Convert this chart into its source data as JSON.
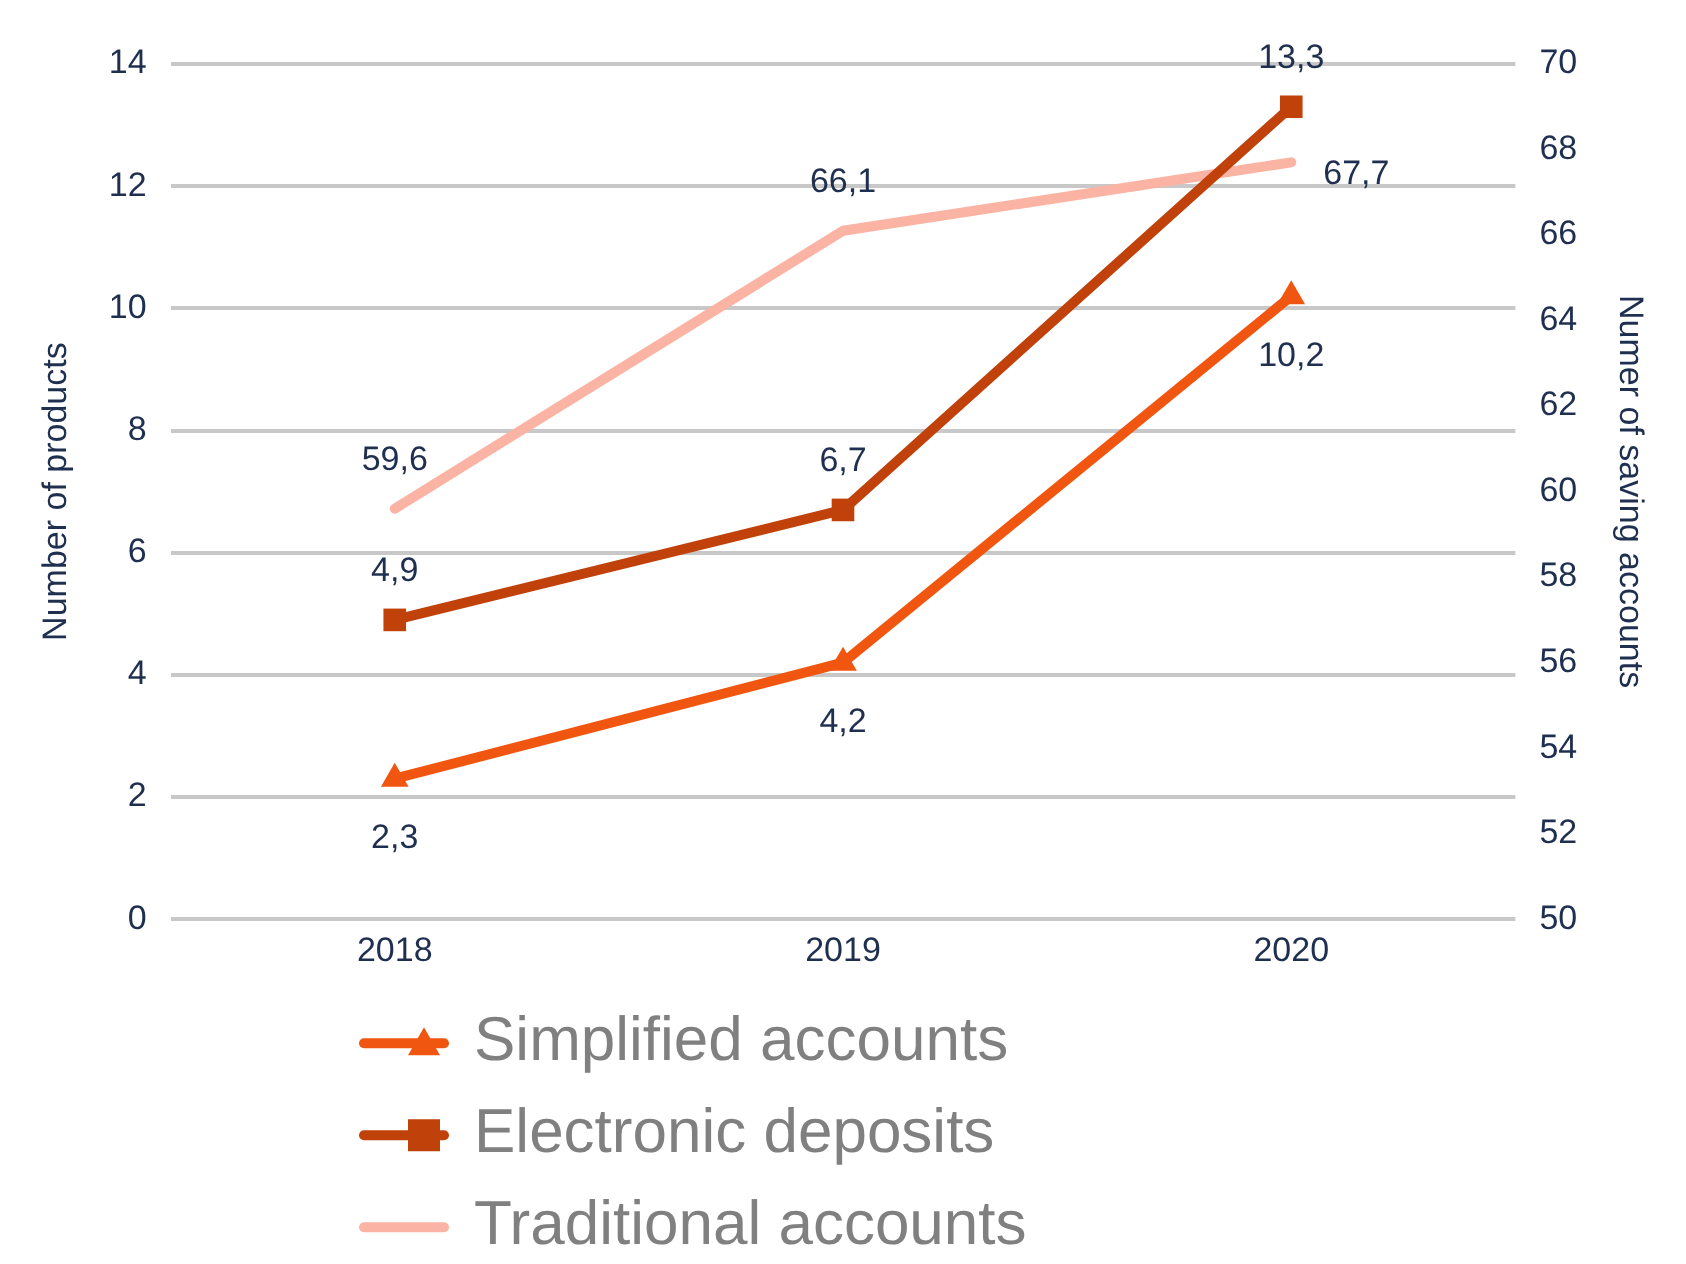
{
  "chart_data": {
    "type": "line",
    "ylabel": "Number of products",
    "y2label": "Numer of saving accounts",
    "categories": [
      "2018",
      "2019",
      "2020"
    ],
    "series": [
      {
        "name": "Simplified accounts",
        "color": "#f0560f",
        "marker": "triangle",
        "values": [
          2.3,
          4.2,
          10.2
        ],
        "value_labels": [
          "2,3",
          "4,2",
          "10,2"
        ]
      },
      {
        "name": "Electronic deposits",
        "color": "#c0410a",
        "marker": "square",
        "values": [
          4.9,
          6.7,
          13.3
        ],
        "value_labels": [
          "4,9",
          "6,7",
          "13,3"
        ]
      },
      {
        "name": "Traditional accounts",
        "color": "#fbb3a3",
        "marker": "none",
        "axis": "y2",
        "values": [
          59.6,
          66.1,
          67.7
        ],
        "value_labels": [
          "59,6",
          "66,1",
          "67,7"
        ]
      }
    ],
    "ylim": [
      0,
      14
    ],
    "yticks": [
      0,
      2,
      4,
      6,
      8,
      10,
      12,
      14
    ],
    "y2lim": [
      50,
      70
    ],
    "y2ticks": [
      50,
      52,
      54,
      56,
      58,
      60,
      62,
      64,
      66,
      68,
      70
    ],
    "grid": "y",
    "legend": "bottom"
  }
}
